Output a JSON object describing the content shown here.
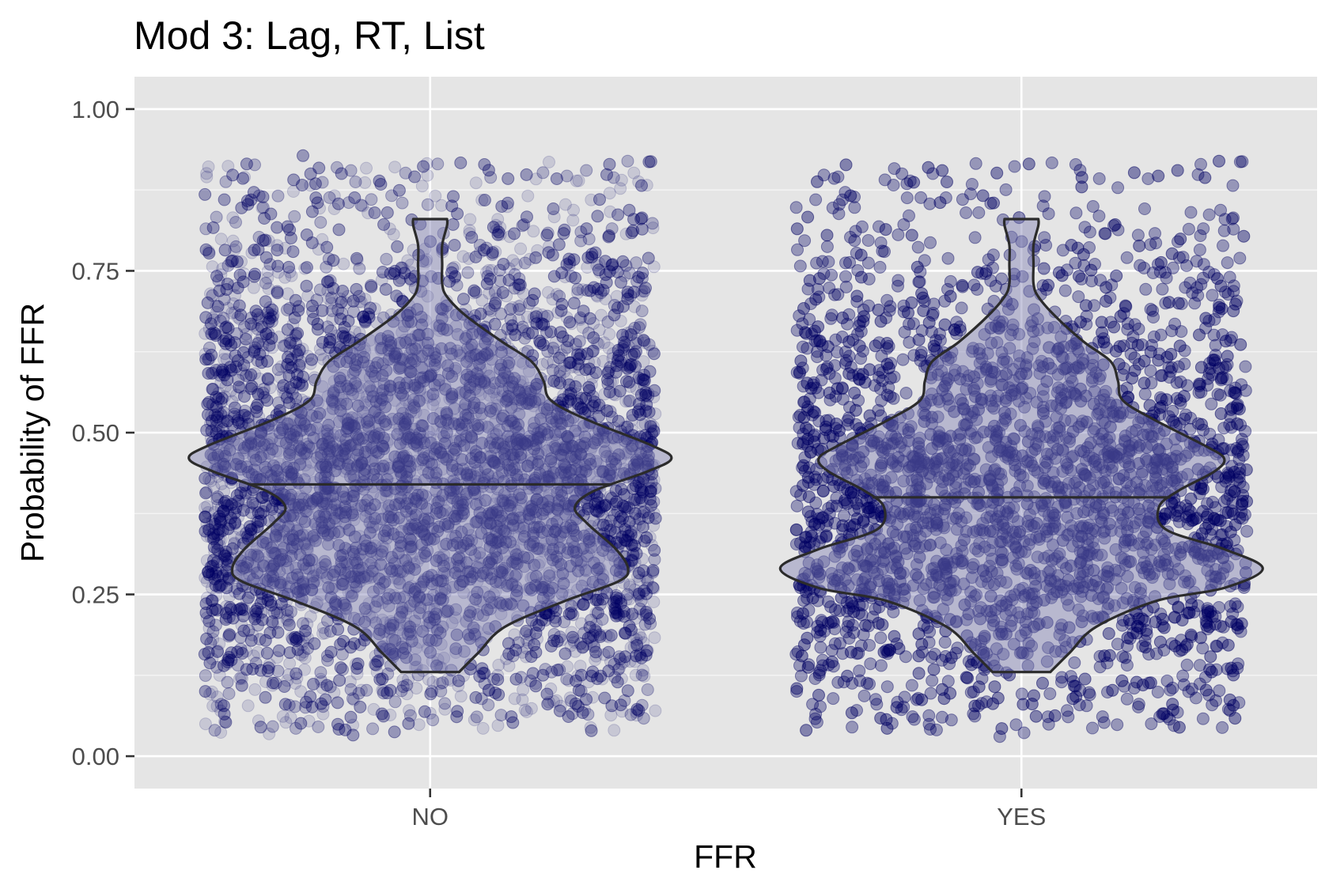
{
  "chart_data": {
    "type": "violin",
    "title": "Mod 3: Lag, RT, List",
    "xlabel": "FFR",
    "ylabel": "Probability of FFR",
    "categories": [
      "NO",
      "YES"
    ],
    "ylim": [
      -0.05,
      1.05
    ],
    "y_ticks": [
      0.0,
      0.25,
      0.5,
      0.75,
      1.0
    ],
    "y_tick_labels": [
      "0.00",
      "0.25",
      "0.50",
      "0.75",
      "1.00"
    ],
    "grid": true,
    "point_color": "#000066",
    "violin_fill": "#8080b3",
    "violin_stroke": "#2b2b2b",
    "panel_background": "#e5e5e5",
    "series": [
      {
        "category": "NO",
        "median": 0.42,
        "density": [
          [
            0.13,
            0.12
          ],
          [
            0.16,
            0.2
          ],
          [
            0.2,
            0.31
          ],
          [
            0.24,
            0.56
          ],
          [
            0.27,
            0.78
          ],
          [
            0.29,
            0.82
          ],
          [
            0.32,
            0.77
          ],
          [
            0.36,
            0.65
          ],
          [
            0.385,
            0.6
          ],
          [
            0.41,
            0.68
          ],
          [
            0.44,
            0.9
          ],
          [
            0.46,
            1.0
          ],
          [
            0.48,
            0.92
          ],
          [
            0.52,
            0.65
          ],
          [
            0.55,
            0.5
          ],
          [
            0.58,
            0.47
          ],
          [
            0.61,
            0.42
          ],
          [
            0.64,
            0.3
          ],
          [
            0.68,
            0.15
          ],
          [
            0.71,
            0.07
          ],
          [
            0.73,
            0.05
          ],
          [
            0.76,
            0.05
          ],
          [
            0.79,
            0.05
          ],
          [
            0.82,
            0.07
          ],
          [
            0.83,
            0.07
          ]
        ]
      },
      {
        "category": "YES",
        "median": 0.4,
        "density": [
          [
            0.13,
            0.12
          ],
          [
            0.16,
            0.2
          ],
          [
            0.2,
            0.31
          ],
          [
            0.24,
            0.56
          ],
          [
            0.26,
            0.84
          ],
          [
            0.29,
            1.0
          ],
          [
            0.32,
            0.84
          ],
          [
            0.35,
            0.6
          ],
          [
            0.385,
            0.57
          ],
          [
            0.41,
            0.65
          ],
          [
            0.44,
            0.8
          ],
          [
            0.46,
            0.84
          ],
          [
            0.48,
            0.76
          ],
          [
            0.52,
            0.55
          ],
          [
            0.55,
            0.42
          ],
          [
            0.58,
            0.4
          ],
          [
            0.61,
            0.37
          ],
          [
            0.64,
            0.26
          ],
          [
            0.68,
            0.14
          ],
          [
            0.71,
            0.07
          ],
          [
            0.73,
            0.05
          ],
          [
            0.76,
            0.05
          ],
          [
            0.79,
            0.05
          ],
          [
            0.82,
            0.07
          ],
          [
            0.83,
            0.07
          ]
        ]
      }
    ]
  }
}
